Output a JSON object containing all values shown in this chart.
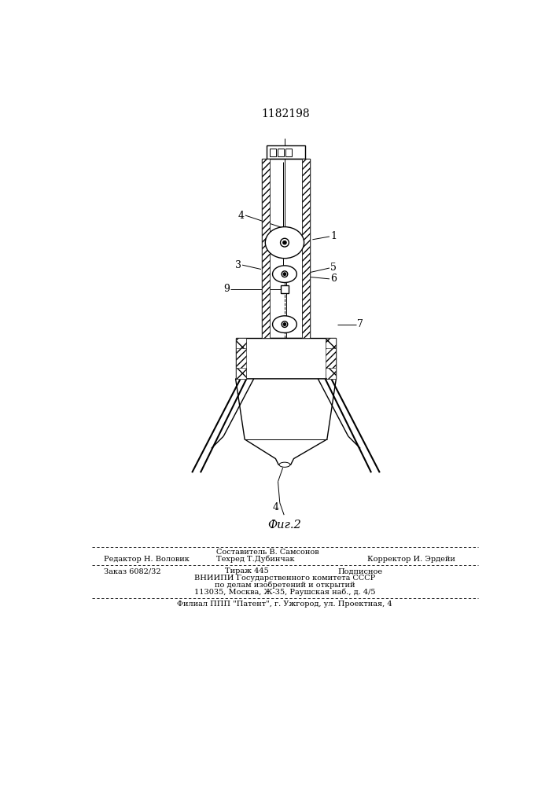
{
  "patent_number": "1182198",
  "fig_label": "Фиг.2",
  "background_color": "#ffffff",
  "line_color": "#000000",
  "footer": {
    "sestavitel": "Составитель В. Самсонов",
    "redaktor": "Редактор Н. Воловик",
    "tehred": "Техред Т.Дубинчак",
    "korrektor": "Корректор И. Эрдейи",
    "zakaz": "Заказ 6082/32",
    "tirazh": "Тираж 445",
    "podpisnoe": "Подписное",
    "vniipи": "ВНИИПИ Государственного комитета СССР",
    "dela": "по делам изобретений и открытий",
    "addr": "113035, Москва, Ж-35, Раушская наб., д. 4/5",
    "filial": "Филиал ППП \"Патент\", г. Ужгород, ул. Проектная, 4"
  }
}
